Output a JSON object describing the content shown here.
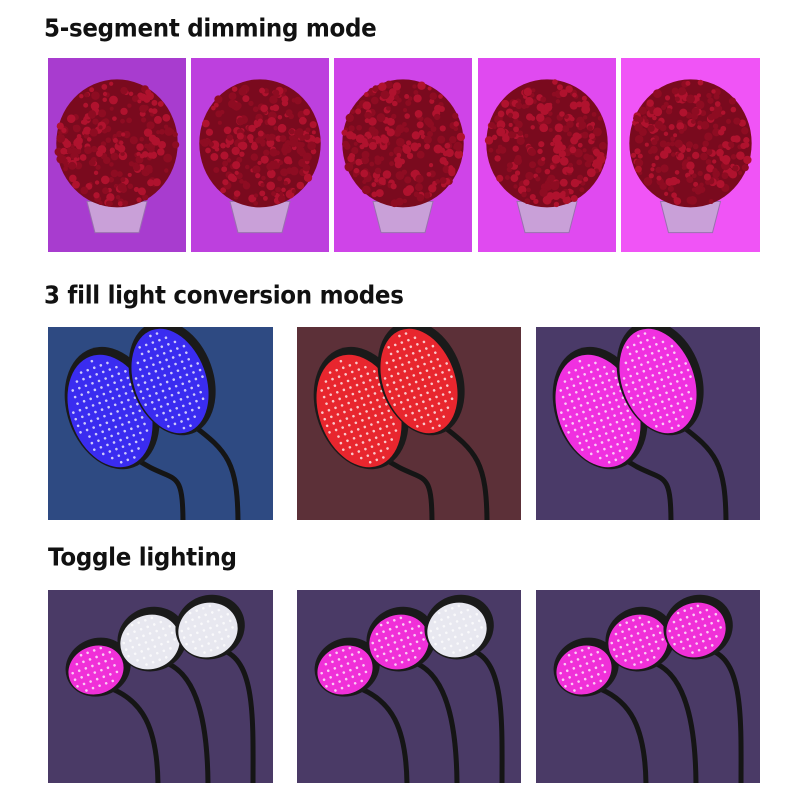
{
  "sections": [
    {
      "title": "5-segment dimming mode",
      "kind": "flower",
      "panels": [
        {
          "bg": "#a83ccf"
        },
        {
          "bg": "#bd40de"
        },
        {
          "bg": "#cf44e8"
        },
        {
          "bg": "#e04af0"
        },
        {
          "bg": "#f054f6"
        }
      ]
    },
    {
      "title": "3 fill light conversion modes",
      "kind": "lamp2",
      "panels": [
        {
          "bg": "#2e4a82",
          "lamps": [
            "#3a2cf0",
            "#3a2cf0"
          ]
        },
        {
          "bg": "#5c3038",
          "lamps": [
            "#e8262e",
            "#e8262e"
          ]
        },
        {
          "bg": "#4a3a68",
          "lamps": [
            "#f030e0",
            "#f030e0"
          ]
        }
      ]
    },
    {
      "title": "Toggle lighting",
      "kind": "lamp3",
      "panels": [
        {
          "bg": "#4a3a66",
          "lamps": [
            "#f030d8",
            "#e8e8f0",
            "#e8e8f0"
          ]
        },
        {
          "bg": "#4a3a66",
          "lamps": [
            "#f030d8",
            "#f030d8",
            "#e8e8f0"
          ]
        },
        {
          "bg": "#4a3a66",
          "lamps": [
            "#f030d8",
            "#f030d8",
            "#f030d8"
          ]
        }
      ]
    }
  ]
}
